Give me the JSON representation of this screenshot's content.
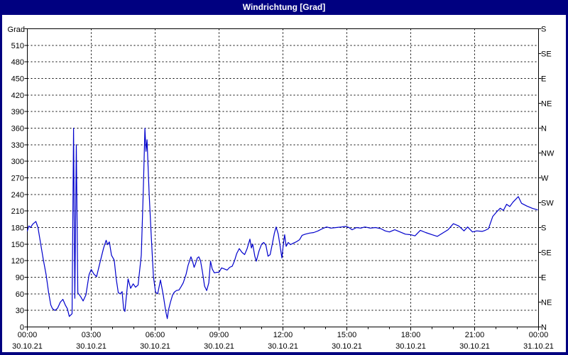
{
  "window": {
    "title": "Windrichtung [Grad]"
  },
  "colors": {
    "titlebar_bg": "#000080",
    "title_text": "#ffffff",
    "plot_bg": "#ffffff",
    "grid": "#000000",
    "axis_text": "#000000",
    "line": "#0000cc"
  },
  "chart_data": {
    "type": "line",
    "title": "Windrichtung [Grad]",
    "grid": "dashed",
    "legend": "none",
    "y_left": {
      "title": "Grad",
      "min": 0,
      "max": 540,
      "tick_step": 30,
      "labeled_ticks": [
        0,
        30,
        60,
        90,
        120,
        150,
        180,
        210,
        240,
        270,
        300,
        330,
        360,
        390,
        420,
        450,
        480,
        510
      ]
    },
    "y_right": {
      "ticks": [
        {
          "deg": 0,
          "label": "N"
        },
        {
          "deg": 45,
          "label": "NE"
        },
        {
          "deg": 90,
          "label": "E"
        },
        {
          "deg": 135,
          "label": "SE"
        },
        {
          "deg": 180,
          "label": "S"
        },
        {
          "deg": 225,
          "label": "SW"
        },
        {
          "deg": 270,
          "label": "W"
        },
        {
          "deg": 315,
          "label": "NW"
        },
        {
          "deg": 360,
          "label": "N"
        },
        {
          "deg": 405,
          "label": "NE"
        },
        {
          "deg": 450,
          "label": "E"
        },
        {
          "deg": 495,
          "label": "SE"
        },
        {
          "deg": 540,
          "label": "S"
        }
      ]
    },
    "x_axis": {
      "unit": "hours",
      "min": 0,
      "max": 24,
      "minor_step": 1,
      "major_ticks": [
        {
          "hour": 0,
          "time": "00:00",
          "date": "30.10.21"
        },
        {
          "hour": 3,
          "time": "03:00",
          "date": "30.10.21"
        },
        {
          "hour": 6,
          "time": "06:00",
          "date": "30.10.21"
        },
        {
          "hour": 9,
          "time": "09:00",
          "date": "30.10.21"
        },
        {
          "hour": 12,
          "time": "12:00",
          "date": "30.10.21"
        },
        {
          "hour": 15,
          "time": "15:00",
          "date": "30.10.21"
        },
        {
          "hour": 18,
          "time": "18:00",
          "date": "30.10.21"
        },
        {
          "hour": 21,
          "time": "21:00",
          "date": "30.10.21"
        },
        {
          "hour": 24,
          "time": "00:00",
          "date": "31.10.21"
        }
      ]
    },
    "series": [
      {
        "name": "Windrichtung",
        "color": "#0000cc",
        "points": [
          [
            0,
            174
          ],
          [
            0.07,
            183
          ],
          [
            0.15,
            180
          ],
          [
            0.25,
            186
          ],
          [
            0.4,
            191
          ],
          [
            0.5,
            180
          ],
          [
            0.62,
            152
          ],
          [
            0.75,
            122
          ],
          [
            0.88,
            95
          ],
          [
            1.0,
            62
          ],
          [
            1.1,
            40
          ],
          [
            1.18,
            33
          ],
          [
            1.3,
            30
          ],
          [
            1.42,
            34
          ],
          [
            1.55,
            45
          ],
          [
            1.67,
            50
          ],
          [
            1.78,
            40
          ],
          [
            1.88,
            33
          ],
          [
            1.97,
            19
          ],
          [
            2.1,
            24
          ],
          [
            2.17,
            360
          ],
          [
            2.23,
            52
          ],
          [
            2.3,
            330
          ],
          [
            2.37,
            62
          ],
          [
            2.5,
            55
          ],
          [
            2.62,
            47
          ],
          [
            2.75,
            58
          ],
          [
            2.9,
            95
          ],
          [
            3.0,
            104
          ],
          [
            3.12,
            96
          ],
          [
            3.25,
            91
          ],
          [
            3.42,
            118
          ],
          [
            3.58,
            143
          ],
          [
            3.7,
            157
          ],
          [
            3.77,
            149
          ],
          [
            3.85,
            154
          ],
          [
            3.95,
            130
          ],
          [
            4.08,
            121
          ],
          [
            4.17,
            88
          ],
          [
            4.27,
            62
          ],
          [
            4.37,
            60
          ],
          [
            4.45,
            64
          ],
          [
            4.52,
            33
          ],
          [
            4.58,
            28
          ],
          [
            4.73,
            87
          ],
          [
            4.85,
            70
          ],
          [
            4.97,
            78
          ],
          [
            5.08,
            72
          ],
          [
            5.2,
            76
          ],
          [
            5.35,
            130
          ],
          [
            5.45,
            255
          ],
          [
            5.52,
            360
          ],
          [
            5.57,
            318
          ],
          [
            5.62,
            339
          ],
          [
            5.72,
            240
          ],
          [
            5.82,
            163
          ],
          [
            5.92,
            91
          ],
          [
            6.02,
            63
          ],
          [
            6.12,
            60
          ],
          [
            6.25,
            85
          ],
          [
            6.38,
            58
          ],
          [
            6.5,
            28
          ],
          [
            6.57,
            15
          ],
          [
            6.63,
            31
          ],
          [
            6.72,
            45
          ],
          [
            6.82,
            58
          ],
          [
            6.9,
            63
          ],
          [
            7.0,
            66
          ],
          [
            7.12,
            67
          ],
          [
            7.22,
            73
          ],
          [
            7.32,
            80
          ],
          [
            7.45,
            95
          ],
          [
            7.55,
            112
          ],
          [
            7.68,
            127
          ],
          [
            7.75,
            120
          ],
          [
            7.83,
            108
          ],
          [
            7.9,
            115
          ],
          [
            7.98,
            125
          ],
          [
            8.05,
            127
          ],
          [
            8.13,
            120
          ],
          [
            8.22,
            100
          ],
          [
            8.32,
            74
          ],
          [
            8.42,
            66
          ],
          [
            8.52,
            80
          ],
          [
            8.6,
            119
          ],
          [
            8.68,
            105
          ],
          [
            8.78,
            98
          ],
          [
            8.9,
            99
          ],
          [
            9.0,
            99
          ],
          [
            9.12,
            107
          ],
          [
            9.25,
            105
          ],
          [
            9.38,
            103
          ],
          [
            9.5,
            108
          ],
          [
            9.62,
            110
          ],
          [
            9.72,
            119
          ],
          [
            9.83,
            133
          ],
          [
            9.95,
            142
          ],
          [
            10.08,
            135
          ],
          [
            10.2,
            131
          ],
          [
            10.32,
            142
          ],
          [
            10.45,
            159
          ],
          [
            10.52,
            143
          ],
          [
            10.58,
            150
          ],
          [
            10.68,
            128
          ],
          [
            10.75,
            119
          ],
          [
            10.88,
            138
          ],
          [
            11.0,
            150
          ],
          [
            11.1,
            153
          ],
          [
            11.2,
            148
          ],
          [
            11.3,
            128
          ],
          [
            11.4,
            131
          ],
          [
            11.5,
            150
          ],
          [
            11.6,
            170
          ],
          [
            11.68,
            181
          ],
          [
            11.78,
            168
          ],
          [
            11.88,
            143
          ],
          [
            11.95,
            125
          ],
          [
            12.02,
            150
          ],
          [
            12.08,
            167
          ],
          [
            12.15,
            146
          ],
          [
            12.25,
            153
          ],
          [
            12.35,
            149
          ],
          [
            12.5,
            152
          ],
          [
            12.62,
            154
          ],
          [
            12.78,
            158
          ],
          [
            12.9,
            166
          ],
          [
            13.05,
            168
          ],
          [
            13.25,
            170
          ],
          [
            13.45,
            171
          ],
          [
            13.65,
            174
          ],
          [
            13.85,
            178
          ],
          [
            14.05,
            181
          ],
          [
            14.25,
            179
          ],
          [
            14.5,
            180
          ],
          [
            14.75,
            181
          ],
          [
            14.95,
            182
          ],
          [
            15.1,
            180
          ],
          [
            15.25,
            176
          ],
          [
            15.45,
            180
          ],
          [
            15.65,
            179
          ],
          [
            15.85,
            181
          ],
          [
            16.1,
            179
          ],
          [
            16.35,
            180
          ],
          [
            16.6,
            178
          ],
          [
            16.8,
            174
          ],
          [
            17.0,
            172
          ],
          [
            17.25,
            176
          ],
          [
            17.5,
            172
          ],
          [
            17.75,
            168
          ],
          [
            18.0,
            167
          ],
          [
            18.2,
            165
          ],
          [
            18.45,
            175
          ],
          [
            18.7,
            171
          ],
          [
            19.0,
            167
          ],
          [
            19.25,
            164
          ],
          [
            19.5,
            170
          ],
          [
            19.75,
            176
          ],
          [
            20.0,
            187
          ],
          [
            20.25,
            183
          ],
          [
            20.5,
            174
          ],
          [
            20.67,
            181
          ],
          [
            20.9,
            172
          ],
          [
            21.1,
            174
          ],
          [
            21.35,
            173
          ],
          [
            21.5,
            175
          ],
          [
            21.65,
            178
          ],
          [
            21.85,
            200
          ],
          [
            22.05,
            209
          ],
          [
            22.2,
            215
          ],
          [
            22.35,
            211
          ],
          [
            22.5,
            222
          ],
          [
            22.65,
            218
          ],
          [
            22.8,
            226
          ],
          [
            23.05,
            236
          ],
          [
            23.2,
            224
          ],
          [
            23.45,
            219
          ],
          [
            23.7,
            215
          ],
          [
            23.95,
            212
          ]
        ]
      }
    ]
  }
}
